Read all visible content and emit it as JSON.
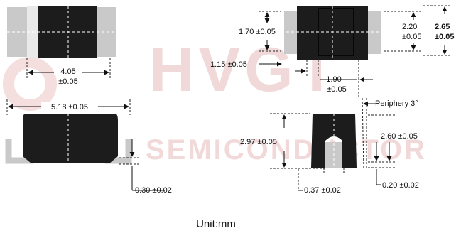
{
  "watermark": {
    "brand": "HVGT",
    "subtitle": "SEMICONDUCTOR"
  },
  "dimensions": {
    "body_length": "4.05",
    "body_length_tol": "±0.05",
    "overall_length": "5.18 ±0.05",
    "lead_thickness": "0.30 ±0.02",
    "height_inner": "1.70 ±0.05",
    "lead_pad": "1.15 ±0.05",
    "center_width": "1.90",
    "center_width_tol": "±0.05",
    "height_220": "2.20",
    "height_220_tol": "±0.05",
    "height_265": "2.65",
    "height_265_tol": "±0.05",
    "periphery": "Periphery 3°",
    "side_height": "2.97 ±0.05",
    "lead_width": "0.37 ±0.02",
    "body_height": "2.60 ±0.05",
    "standoff": "0.20 ±0.02"
  },
  "footer": {
    "unit": "Unit:mm"
  },
  "colors": {
    "body": "#1c1c1c",
    "lead": "#c9c9c9",
    "watermark": "#f2d9d9"
  }
}
